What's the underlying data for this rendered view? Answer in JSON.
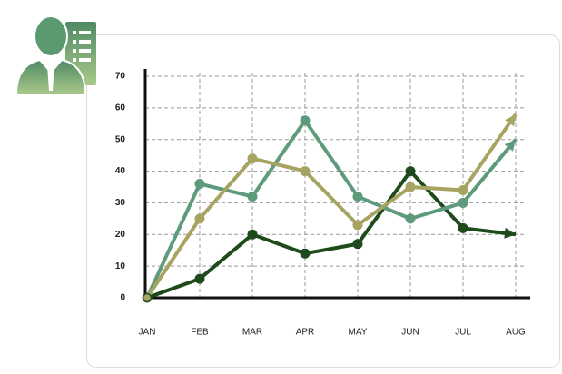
{
  "chart_data": {
    "type": "line",
    "categories": [
      "JAN",
      "FEB",
      "MAR",
      "APR",
      "MAY",
      "JUN",
      "JUL",
      "AUG"
    ],
    "series": [
      {
        "color": "#1e4a1c",
        "values": [
          0,
          6,
          20,
          14,
          17,
          40,
          22,
          20
        ]
      },
      {
        "color": "#5e9a7c",
        "values": [
          0,
          36,
          32,
          56,
          32,
          25,
          30,
          50
        ]
      },
      {
        "color": "#a7a462",
        "values": [
          0,
          25,
          44,
          40,
          23,
          35,
          34,
          58
        ]
      }
    ],
    "ylim": [
      0,
      70
    ],
    "yticks": [
      0,
      10,
      20,
      30,
      40,
      50,
      60,
      70
    ],
    "grid": true
  }
}
